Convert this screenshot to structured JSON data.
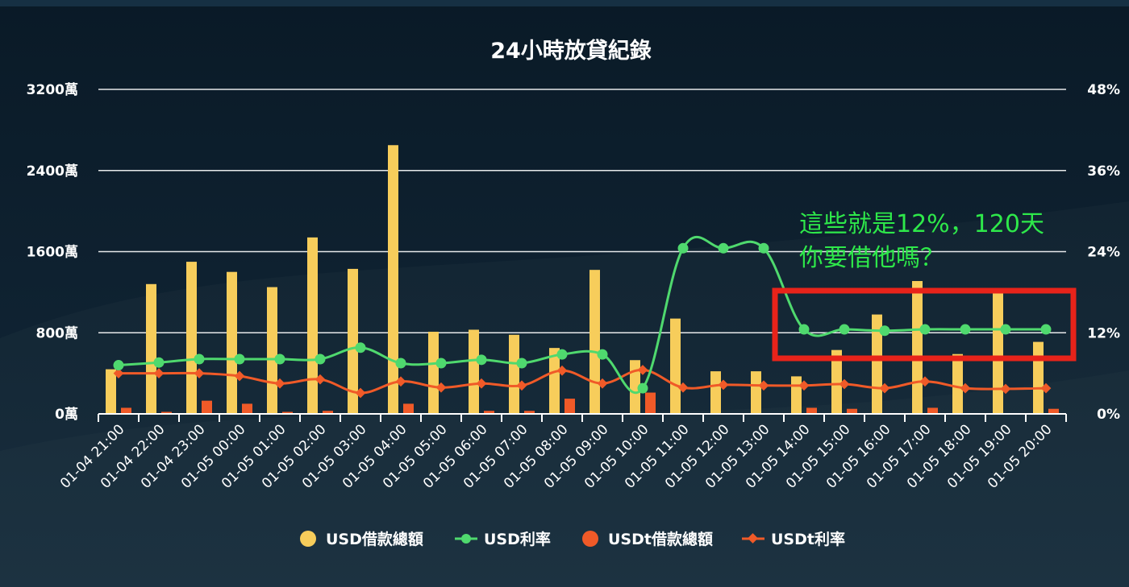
{
  "chart_data": {
    "type": "bar",
    "title": "24小時放貸紀錄",
    "categories": [
      "01-04 21:00",
      "01-04 22:00",
      "01-04 23:00",
      "01-05 00:00",
      "01-05 01:00",
      "01-05 02:00",
      "01-05 03:00",
      "01-05 04:00",
      "01-05 05:00",
      "01-05 06:00",
      "01-05 07:00",
      "01-05 08:00",
      "01-05 09:00",
      "01-05 10:00",
      "01-05 11:00",
      "01-05 12:00",
      "01-05 13:00",
      "01-05 14:00",
      "01-05 15:00",
      "01-05 16:00",
      "01-05 17:00",
      "01-05 18:00",
      "01-05 19:00",
      "01-05 20:00"
    ],
    "y_left": {
      "ticks": [
        "0萬",
        "800萬",
        "1600萬",
        "2400萬",
        "3200萬"
      ],
      "range": [
        0,
        3200
      ],
      "unit": "萬"
    },
    "y_right": {
      "ticks": [
        "0%",
        "12%",
        "24%",
        "36%",
        "48%"
      ],
      "range": [
        0,
        48
      ],
      "unit": "%"
    },
    "grid": true,
    "legend_position": "bottom",
    "series": [
      {
        "name": "USD借款總額",
        "type": "bar",
        "axis": "left",
        "color": "#f7cd5b",
        "values": [
          440,
          1280,
          1500,
          1400,
          1250,
          1740,
          1430,
          2650,
          810,
          830,
          780,
          650,
          1420,
          530,
          940,
          420,
          420,
          370,
          630,
          980,
          1310,
          590,
          1240,
          710
        ]
      },
      {
        "name": "USD利率",
        "type": "line",
        "axis": "right",
        "color": "#4fd96e",
        "values": [
          7.2,
          7.6,
          8.1,
          8.1,
          8.1,
          8.1,
          9.8,
          7.5,
          7.5,
          8.0,
          7.5,
          8.8,
          8.8,
          3.8,
          24.5,
          24.5,
          24.5,
          12.5,
          12.5,
          12.3,
          12.5,
          12.5,
          12.5,
          12.5
        ]
      },
      {
        "name": "USDt借款總額",
        "type": "bar",
        "axis": "left",
        "color": "#f05a28",
        "values": [
          60,
          20,
          130,
          100,
          20,
          30,
          5,
          100,
          5,
          30,
          30,
          150,
          5,
          210,
          0,
          5,
          5,
          60,
          50,
          5,
          60,
          5,
          5,
          50
        ]
      },
      {
        "name": "USDt利率",
        "type": "line",
        "axis": "right",
        "color": "#f05a28",
        "values": [
          6.0,
          6.0,
          6.0,
          5.6,
          4.5,
          5.1,
          3.1,
          4.8,
          3.9,
          4.5,
          4.2,
          6.4,
          4.5,
          6.5,
          3.9,
          4.3,
          4.2,
          4.2,
          4.4,
          3.8,
          4.8,
          3.8,
          3.7,
          3.8
        ]
      }
    ],
    "annotation": {
      "line1": "這些就是12%，120天",
      "line2": "你要借他嗎？",
      "text_color": "#2ee84a",
      "highlight_color": "#e8231a"
    }
  }
}
